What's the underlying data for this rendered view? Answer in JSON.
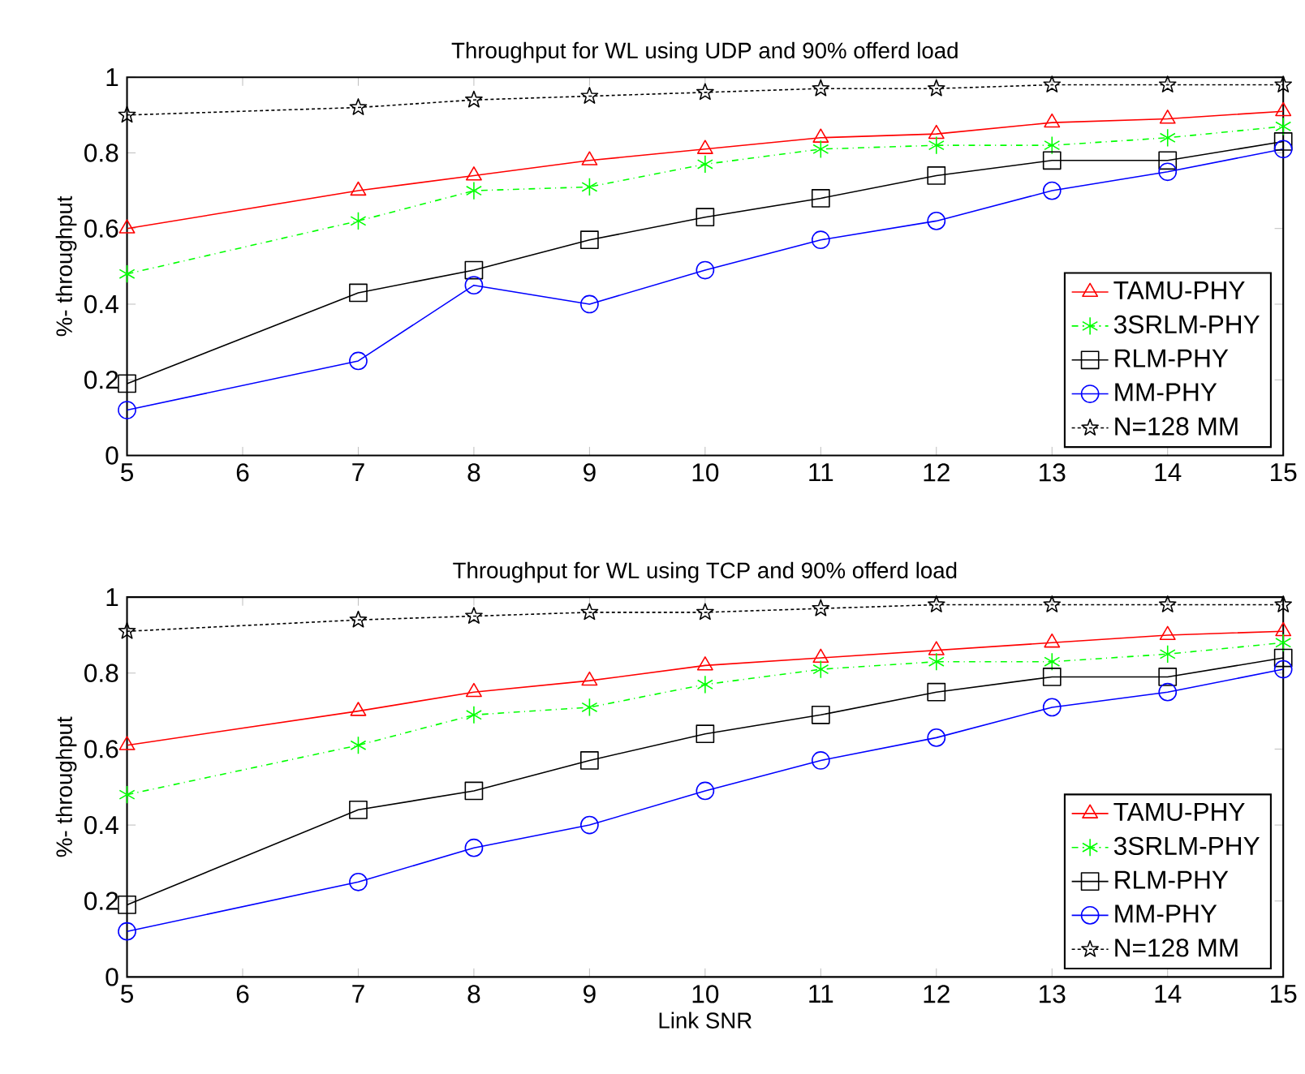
{
  "chart_data": [
    {
      "type": "line",
      "title": "Throughput for WL using UDP and 90% offerd load",
      "ylabel": "%- throughput",
      "x": [
        5,
        7,
        8,
        9,
        10,
        11,
        12,
        13,
        14,
        15
      ],
      "xlim": [
        5,
        15
      ],
      "ylim": [
        0,
        1
      ],
      "xticks": [
        5,
        6,
        7,
        8,
        9,
        10,
        11,
        12,
        13,
        14,
        15
      ],
      "yticks": [
        0,
        0.2,
        0.4,
        0.6,
        0.8,
        1
      ],
      "grid": false,
      "legend": "bottom right",
      "series": [
        {
          "name": "TAMU-PHY",
          "color": "#ff0000",
          "marker": "triangle",
          "line_style": "solid",
          "values": [
            0.6,
            0.7,
            0.74,
            0.78,
            0.81,
            0.84,
            0.85,
            0.88,
            0.89,
            0.91
          ]
        },
        {
          "name": "3SRLM-PHY",
          "color": "#00ff00",
          "marker": "cross",
          "line_style": "dashed",
          "values": [
            0.48,
            0.62,
            0.7,
            0.71,
            0.77,
            0.81,
            0.82,
            0.82,
            0.84,
            0.87
          ]
        },
        {
          "name": "RLM-PHY",
          "color": "#000000",
          "marker": "square",
          "line_style": "solid",
          "values": [
            0.19,
            0.43,
            0.49,
            0.57,
            0.63,
            0.68,
            0.74,
            0.78,
            0.78,
            0.83
          ]
        },
        {
          "name": "MM-PHY",
          "color": "#0000ff",
          "marker": "circle",
          "line_style": "solid",
          "values": [
            0.12,
            0.25,
            0.45,
            0.4,
            0.49,
            0.57,
            0.62,
            0.7,
            0.75,
            0.81
          ]
        },
        {
          "name": "N=128 MM",
          "color": "#000000",
          "marker": "star",
          "line_style": "dotted",
          "values": [
            0.9,
            0.92,
            0.94,
            0.95,
            0.96,
            0.97,
            0.97,
            0.98,
            0.98,
            0.98
          ]
        }
      ]
    },
    {
      "type": "line",
      "title": "Throughput for WL using TCP and 90% offerd load",
      "xlabel": "Link SNR",
      "ylabel": "%- throughput",
      "x": [
        5,
        7,
        8,
        9,
        10,
        11,
        12,
        13,
        14,
        15
      ],
      "xlim": [
        5,
        15
      ],
      "ylim": [
        0,
        1
      ],
      "xticks": [
        5,
        6,
        7,
        8,
        9,
        10,
        11,
        12,
        13,
        14,
        15
      ],
      "yticks": [
        0,
        0.2,
        0.4,
        0.6,
        0.8,
        1
      ],
      "grid": false,
      "legend": "bottom right",
      "series": [
        {
          "name": "TAMU-PHY",
          "color": "#ff0000",
          "marker": "triangle",
          "line_style": "solid",
          "values": [
            0.61,
            0.7,
            0.75,
            0.78,
            0.82,
            0.84,
            0.86,
            0.88,
            0.9,
            0.91
          ]
        },
        {
          "name": "3SRLM-PHY",
          "color": "#00ff00",
          "marker": "cross",
          "line_style": "dashed",
          "values": [
            0.48,
            0.61,
            0.69,
            0.71,
            0.77,
            0.81,
            0.83,
            0.83,
            0.85,
            0.88
          ]
        },
        {
          "name": "RLM-PHY",
          "color": "#000000",
          "marker": "square",
          "line_style": "solid",
          "values": [
            0.19,
            0.44,
            0.49,
            0.57,
            0.64,
            0.69,
            0.75,
            0.79,
            0.79,
            0.84
          ]
        },
        {
          "name": "MM-PHY",
          "color": "#0000ff",
          "marker": "circle",
          "line_style": "solid",
          "values": [
            0.12,
            0.25,
            0.34,
            0.4,
            0.49,
            0.57,
            0.63,
            0.71,
            0.75,
            0.81
          ]
        },
        {
          "name": "N=128 MM",
          "color": "#000000",
          "marker": "star",
          "line_style": "dotted",
          "values": [
            0.91,
            0.94,
            0.95,
            0.96,
            0.96,
            0.97,
            0.98,
            0.98,
            0.98,
            0.98
          ]
        }
      ]
    }
  ]
}
